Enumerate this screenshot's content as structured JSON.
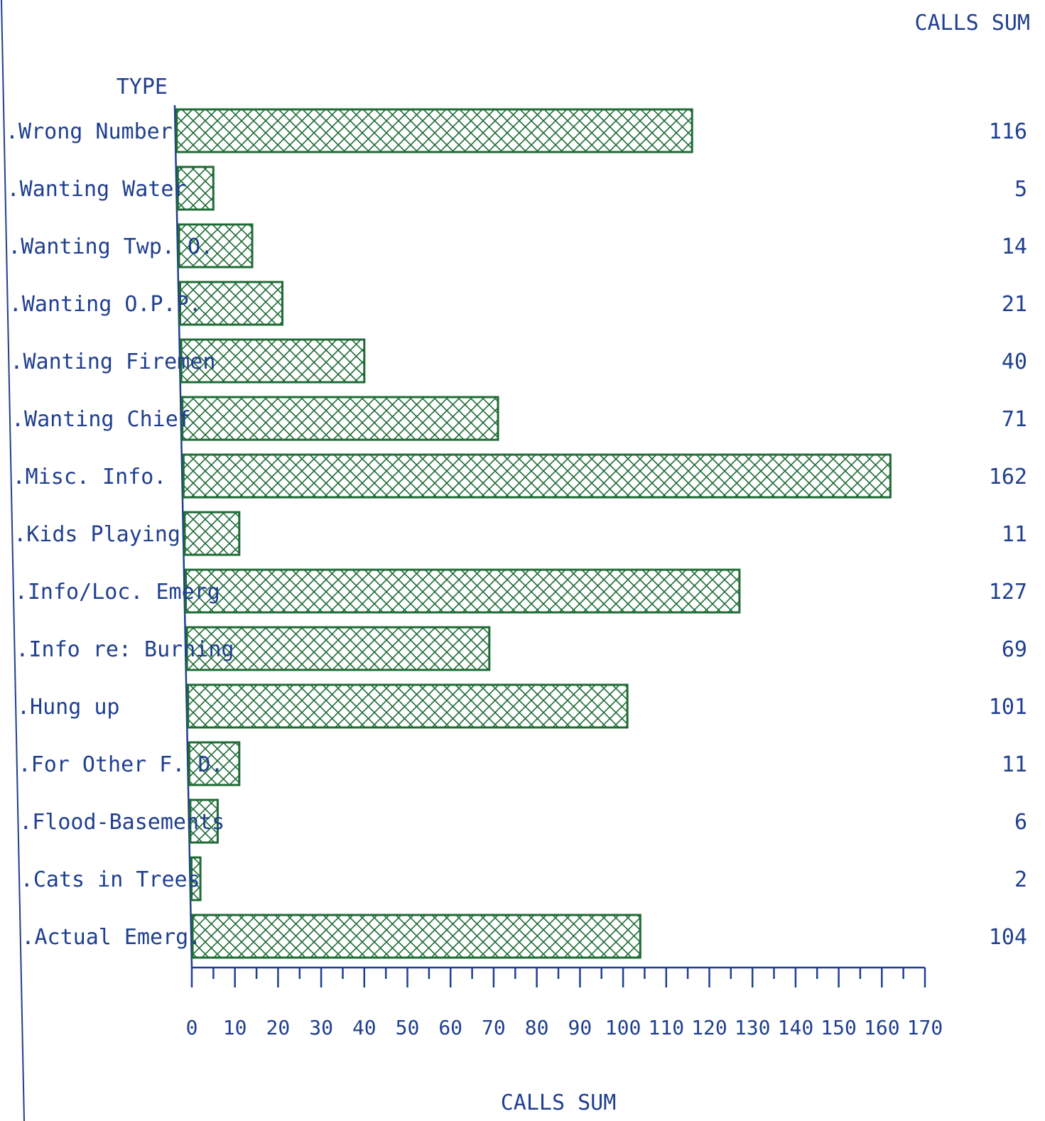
{
  "chart_data": {
    "type": "bar",
    "orientation": "horizontal",
    "category_header": "TYPE",
    "value_header": "CALLS SUM",
    "xlabel": "CALLS SUM",
    "categories": [
      ".Wrong Number",
      ".Wanting Water",
      ".Wanting Twp. O.",
      ".Wanting O.P.P.",
      ".Wanting Firemen",
      ".Wanting Chief",
      ".Misc. Info.",
      ".Kids Playing",
      ".Info/Loc. Emerg",
      ".Info re: Burning",
      ".Hung up",
      ".For Other F. D.",
      ".Flood-Basements",
      ".Cats in Trees",
      ".Actual Emerg."
    ],
    "values": [
      116,
      5,
      14,
      21,
      40,
      71,
      162,
      11,
      127,
      69,
      101,
      11,
      6,
      2,
      104
    ],
    "value_labels": [
      "116",
      "5",
      "14",
      "21",
      "40",
      "71",
      "162",
      "11",
      "127",
      "69",
      "101",
      "11",
      "6",
      "2",
      "104"
    ],
    "xlim": [
      0,
      170
    ],
    "xticks": [
      "0",
      "10",
      "20",
      "30",
      "40",
      "50",
      "60",
      "70",
      "80",
      "90",
      "100",
      "110",
      "120",
      "130",
      "140",
      "150",
      "160",
      "170"
    ],
    "grid": false,
    "legend": "none",
    "bar_color": "#1e6b35",
    "text_color": "#1f3f8f",
    "bar_pattern": "crosshatch"
  }
}
